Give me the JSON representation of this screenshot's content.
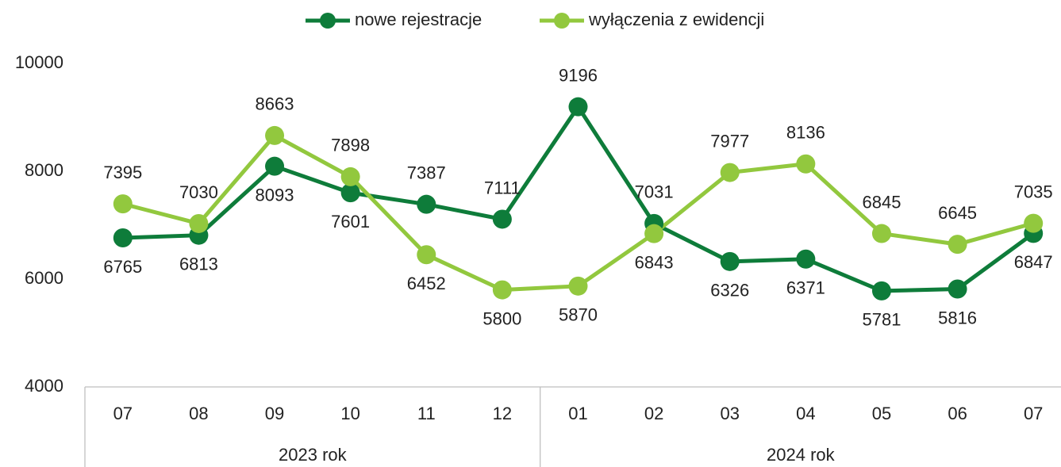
{
  "chart_data": {
    "type": "line",
    "categories": [
      "07",
      "08",
      "09",
      "10",
      "11",
      "12",
      "01",
      "02",
      "03",
      "04",
      "05",
      "06",
      "07"
    ],
    "category_groups": [
      "2023 rok",
      "2023 rok",
      "2023 rok",
      "2023 rok",
      "2023 rok",
      "2023 rok",
      "2024 rok",
      "2024 rok",
      "2024 rok",
      "2024 rok",
      "2024 rok",
      "2024 rok",
      "2024 rok"
    ],
    "series": [
      {
        "name": "nowe rejestracje",
        "color": "#0e7c3a",
        "values": [
          6765,
          6813,
          8093,
          7601,
          7387,
          7111,
          9196,
          7031,
          6326,
          6371,
          5781,
          5816,
          6847
        ]
      },
      {
        "name": "wyłączenia z ewidencji",
        "color": "#92c83e",
        "values": [
          7395,
          7030,
          8663,
          7898,
          6452,
          5800,
          5870,
          6843,
          7977,
          8136,
          6845,
          6645,
          7035
        ]
      }
    ],
    "ylim": [
      4000,
      10000
    ],
    "yticks": [
      4000,
      6000,
      8000,
      10000
    ],
    "legend": "top",
    "grid": false
  }
}
